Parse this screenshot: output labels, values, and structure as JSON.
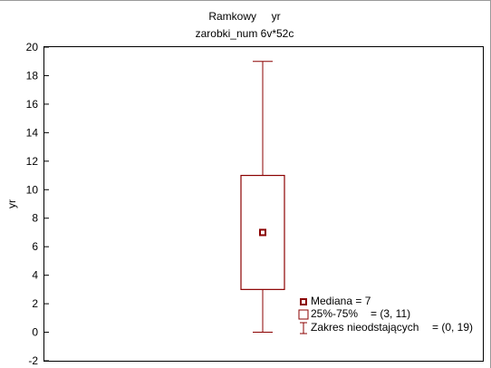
{
  "chart_data": {
    "type": "box",
    "title": "Ramkowy     yr",
    "subtitle": "zarobki_num 6v*52c",
    "xlabel": "",
    "ylabel": "yr",
    "ylim": [
      -2,
      20
    ],
    "yticks": [
      -2,
      0,
      2,
      4,
      6,
      8,
      10,
      12,
      14,
      16,
      18,
      20
    ],
    "grid": false,
    "box": {
      "median": 7,
      "q1": 3,
      "q3": 11,
      "whisker_low": 0,
      "whisker_high": 19
    },
    "color": "#8b0000",
    "legend": {
      "placement": "bottom-right",
      "entries": [
        {
          "name": "median",
          "label": "Mediana = 7"
        },
        {
          "name": "box",
          "label": "25%-75%",
          "value": "= (3, 11)"
        },
        {
          "name": "range",
          "label": "Zakres nieodstających",
          "value": "= (0, 19)"
        }
      ]
    }
  }
}
